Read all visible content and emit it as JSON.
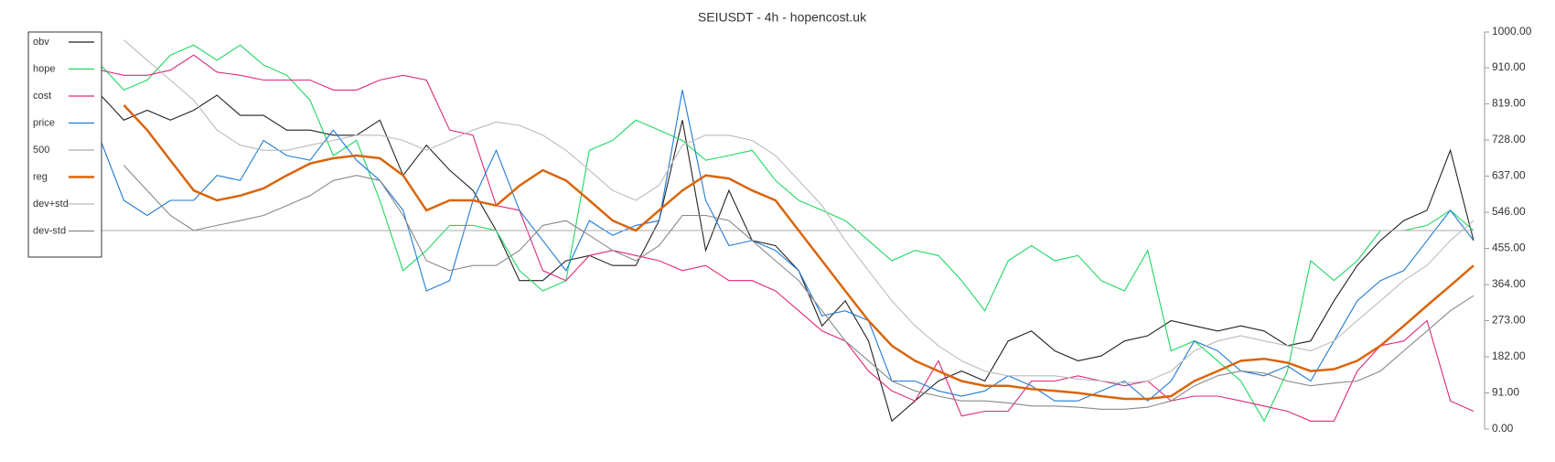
{
  "chart_data": {
    "type": "line",
    "title": "SEIUSDT - 4h - hopencost.uk",
    "ylim": [
      0,
      1000
    ],
    "yticks": [
      {
        "value": 0,
        "label": "0.00"
      },
      {
        "value": 91,
        "label": "91.00"
      },
      {
        "value": 182,
        "label": "182.00"
      },
      {
        "value": 273,
        "label": "273.00"
      },
      {
        "value": 364,
        "label": "364.00"
      },
      {
        "value": 455,
        "label": "455.00"
      },
      {
        "value": 546,
        "label": "546.00"
      },
      {
        "value": 637,
        "label": "637.00"
      },
      {
        "value": 728,
        "label": "728.00"
      },
      {
        "value": 819,
        "label": "819.00"
      },
      {
        "value": 910,
        "label": "910.00"
      },
      {
        "value": 1000,
        "label": "1000.00"
      }
    ],
    "grid": false,
    "legend": "top-left",
    "y_axis_side": "right",
    "series": [
      {
        "name": "obv",
        "color": "#222222",
        "values": [
          841,
          778,
          803,
          778,
          803,
          841,
          790,
          790,
          753,
          753,
          740,
          740,
          778,
          639,
          715,
          652,
          601,
          500,
          374,
          374,
          424,
          437,
          412,
          412,
          525,
          778,
          450,
          601,
          475,
          462,
          399,
          260,
          323,
          222,
          20,
          71,
          121,
          146,
          121,
          222,
          247,
          197,
          172,
          184,
          222,
          235,
          273,
          260,
          247,
          260,
          247,
          210,
          222,
          323,
          412,
          475,
          525,
          551,
          702,
          475
        ]
      },
      {
        "name": "hope",
        "color": "#1ed760",
        "values": [
          917,
          854,
          879,
          942,
          967,
          929,
          967,
          917,
          891,
          828,
          689,
          727,
          576,
          399,
          450,
          513,
          513,
          500,
          399,
          348,
          374,
          702,
          727,
          778,
          753,
          727,
          677,
          689,
          702,
          626,
          576,
          551,
          525,
          475,
          424,
          450,
          437,
          374,
          298,
          424,
          462,
          424,
          437,
          374,
          348,
          450,
          197,
          222,
          172,
          121,
          20,
          146,
          424,
          374,
          424,
          500,
          500,
          513,
          551,
          500
        ]
      },
      {
        "name": "cost",
        "color": "#e0287a",
        "values": [
          904,
          891,
          891,
          904,
          942,
          899,
          891,
          879,
          879,
          879,
          854,
          854,
          879,
          891,
          879,
          753,
          740,
          563,
          551,
          399,
          374,
          437,
          450,
          437,
          424,
          399,
          412,
          374,
          374,
          348,
          298,
          247,
          222,
          146,
          96,
          71,
          172,
          33,
          45,
          45,
          121,
          121,
          134,
          121,
          109,
          121,
          71,
          83,
          83,
          71,
          58,
          45,
          20,
          20,
          146,
          210,
          222,
          273,
          71,
          45
        ]
      },
      {
        "name": "price",
        "color": "#1f7ad6",
        "values": [
          727,
          576,
          538,
          576,
          576,
          639,
          626,
          727,
          689,
          677,
          753,
          677,
          626,
          551,
          348,
          374,
          576,
          702,
          551,
          475,
          399,
          525,
          488,
          513,
          525,
          854,
          576,
          462,
          475,
          450,
          399,
          285,
          298,
          273,
          121,
          121,
          96,
          83,
          96,
          134,
          109,
          71,
          71,
          96,
          121,
          71,
          121,
          222,
          197,
          146,
          134,
          159,
          121,
          222,
          323,
          374,
          399,
          475,
          551,
          475
        ]
      },
      {
        "name": "500",
        "color": "#aaaaaa",
        "values": [
          500,
          500,
          500,
          500,
          500,
          500,
          500,
          500,
          500,
          500,
          500,
          500,
          500,
          500,
          500,
          500,
          500,
          500,
          500,
          500,
          500,
          500,
          500,
          500,
          500,
          500,
          500,
          500,
          500,
          500,
          500,
          500,
          500,
          500,
          500,
          500,
          500,
          500,
          500,
          500,
          500,
          500,
          500,
          500,
          500,
          500,
          500,
          500,
          500,
          500,
          500,
          500,
          500,
          500,
          500,
          500,
          500,
          500,
          500,
          500
        ]
      },
      {
        "name": "reg",
        "color": "#d9650b",
        "values": [
          null,
          816,
          753,
          677,
          601,
          576,
          588,
          606,
          639,
          669,
          682,
          689,
          682,
          639,
          551,
          576,
          576,
          563,
          613,
          652,
          626,
          576,
          525,
          500,
          551,
          601,
          639,
          631,
          601,
          576,
          500,
          424,
          348,
          273,
          210,
          172,
          146,
          121,
          109,
          109,
          101,
          96,
          91,
          83,
          76,
          76,
          83,
          121,
          146,
          172,
          177,
          167,
          146,
          151,
          172,
          210,
          260,
          311,
          361,
          412
        ]
      },
      {
        "name": "dev+std",
        "color": "#bbbbbb",
        "values": [
          null,
          980,
          929,
          879,
          828,
          753,
          715,
          702,
          702,
          715,
          727,
          740,
          740,
          727,
          702,
          727,
          753,
          773,
          765,
          740,
          702,
          652,
          601,
          576,
          614,
          715,
          740,
          740,
          727,
          689,
          626,
          563,
          475,
          399,
          323,
          260,
          210,
          172,
          146,
          134,
          134,
          134,
          126,
          121,
          116,
          121,
          146,
          197,
          222,
          235,
          222,
          210,
          197,
          222,
          273,
          323,
          374,
          412,
          475,
          525
        ]
      },
      {
        "name": "dev-std",
        "color": "#888888",
        "values": [
          null,
          664,
          601,
          538,
          500,
          513,
          525,
          538,
          563,
          588,
          626,
          639,
          626,
          538,
          424,
          399,
          412,
          412,
          450,
          513,
          525,
          488,
          450,
          424,
          462,
          538,
          538,
          525,
          475,
          424,
          374,
          298,
          222,
          172,
          121,
          96,
          83,
          71,
          71,
          66,
          58,
          58,
          55,
          50,
          50,
          55,
          71,
          109,
          134,
          146,
          141,
          121,
          109,
          116,
          121,
          146,
          197,
          247,
          298,
          336
        ]
      }
    ]
  }
}
